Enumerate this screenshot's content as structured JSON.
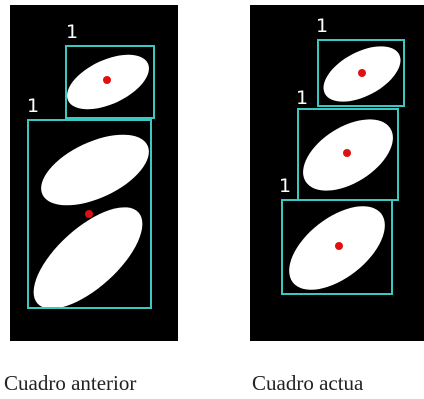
{
  "panels": [
    {
      "caption": "Cuadro anterior",
      "boxes": [
        {
          "label": "1"
        },
        {
          "label": "1"
        }
      ]
    },
    {
      "caption": "Cuadro actua",
      "boxes": [
        {
          "label": "1"
        },
        {
          "label": "1"
        },
        {
          "label": "1"
        }
      ]
    }
  ]
}
